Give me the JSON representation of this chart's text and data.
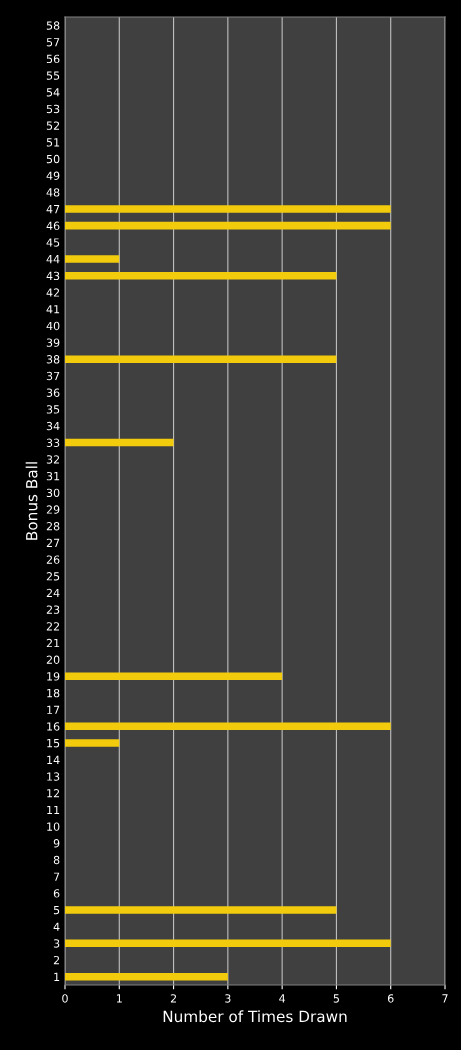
{
  "chart_data": {
    "type": "bar",
    "orientation": "horizontal",
    "xlabel": "Number of Times Drawn",
    "ylabel": "Bonus Ball",
    "categories": [
      "58",
      "57",
      "56",
      "55",
      "54",
      "53",
      "52",
      "51",
      "50",
      "49",
      "48",
      "47",
      "46",
      "45",
      "44",
      "43",
      "42",
      "41",
      "40",
      "39",
      "38",
      "37",
      "36",
      "35",
      "34",
      "33",
      "32",
      "31",
      "30",
      "29",
      "28",
      "27",
      "26",
      "25",
      "24",
      "23",
      "22",
      "21",
      "20",
      "19",
      "18",
      "17",
      "16",
      "15",
      "14",
      "13",
      "12",
      "11",
      "10",
      "9",
      "8",
      "7",
      "6",
      "5",
      "4",
      "3",
      "2",
      "1"
    ],
    "values": [
      0,
      0,
      0,
      0,
      0,
      0,
      0,
      0,
      0,
      0,
      0,
      6,
      6,
      0,
      1,
      5,
      0,
      0,
      0,
      0,
      5,
      0,
      0,
      0,
      0,
      2,
      0,
      0,
      0,
      0,
      0,
      0,
      0,
      0,
      0,
      0,
      0,
      0,
      0,
      4,
      0,
      0,
      6,
      1,
      0,
      0,
      0,
      0,
      0,
      0,
      0,
      0,
      0,
      5,
      0,
      6,
      0,
      3
    ],
    "color": "#f2cc0c",
    "xlim": [
      0,
      7
    ],
    "xticks": [
      0,
      1,
      2,
      3,
      4,
      5,
      6,
      7
    ],
    "grid": "x"
  }
}
